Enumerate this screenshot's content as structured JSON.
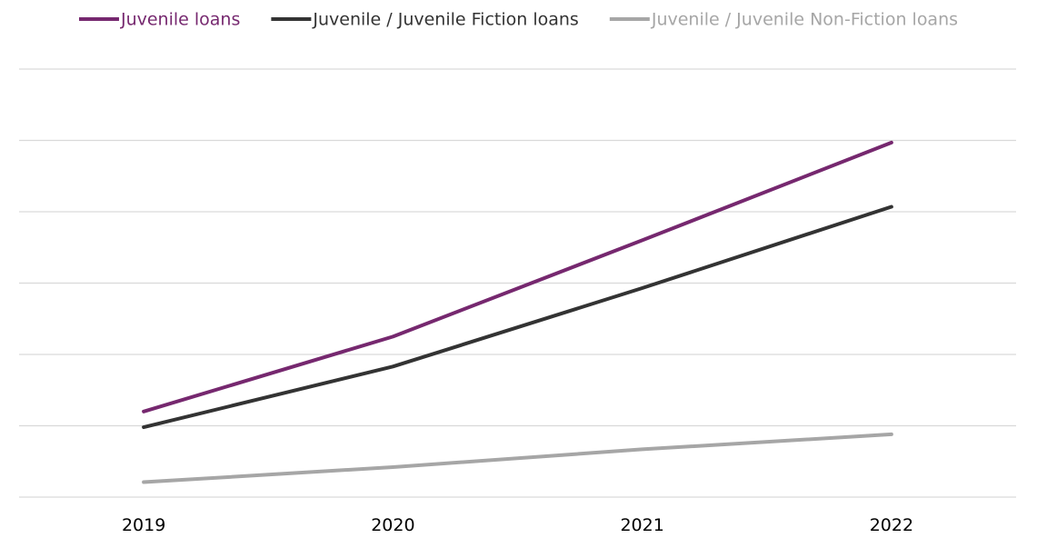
{
  "chart_data": {
    "type": "line",
    "title": "",
    "xlabel": "",
    "ylabel": "",
    "categories": [
      "2019",
      "2020",
      "2021",
      "2022"
    ],
    "ylim": [
      0,
      6
    ],
    "grid": true,
    "legend_position": "top",
    "series": [
      {
        "name": "Juvenile loans",
        "color": "#76286f",
        "values": [
          1.2,
          2.25,
          3.6,
          4.97
        ]
      },
      {
        "name": "Juvenile / Juvenile Fiction loans",
        "color": "#333333",
        "values": [
          0.98,
          1.83,
          2.93,
          4.07
        ]
      },
      {
        "name": "Juvenile / Juvenile Non-Fiction loans",
        "color": "#a6a6a6",
        "values": [
          0.21,
          0.42,
          0.67,
          0.88
        ]
      }
    ]
  }
}
